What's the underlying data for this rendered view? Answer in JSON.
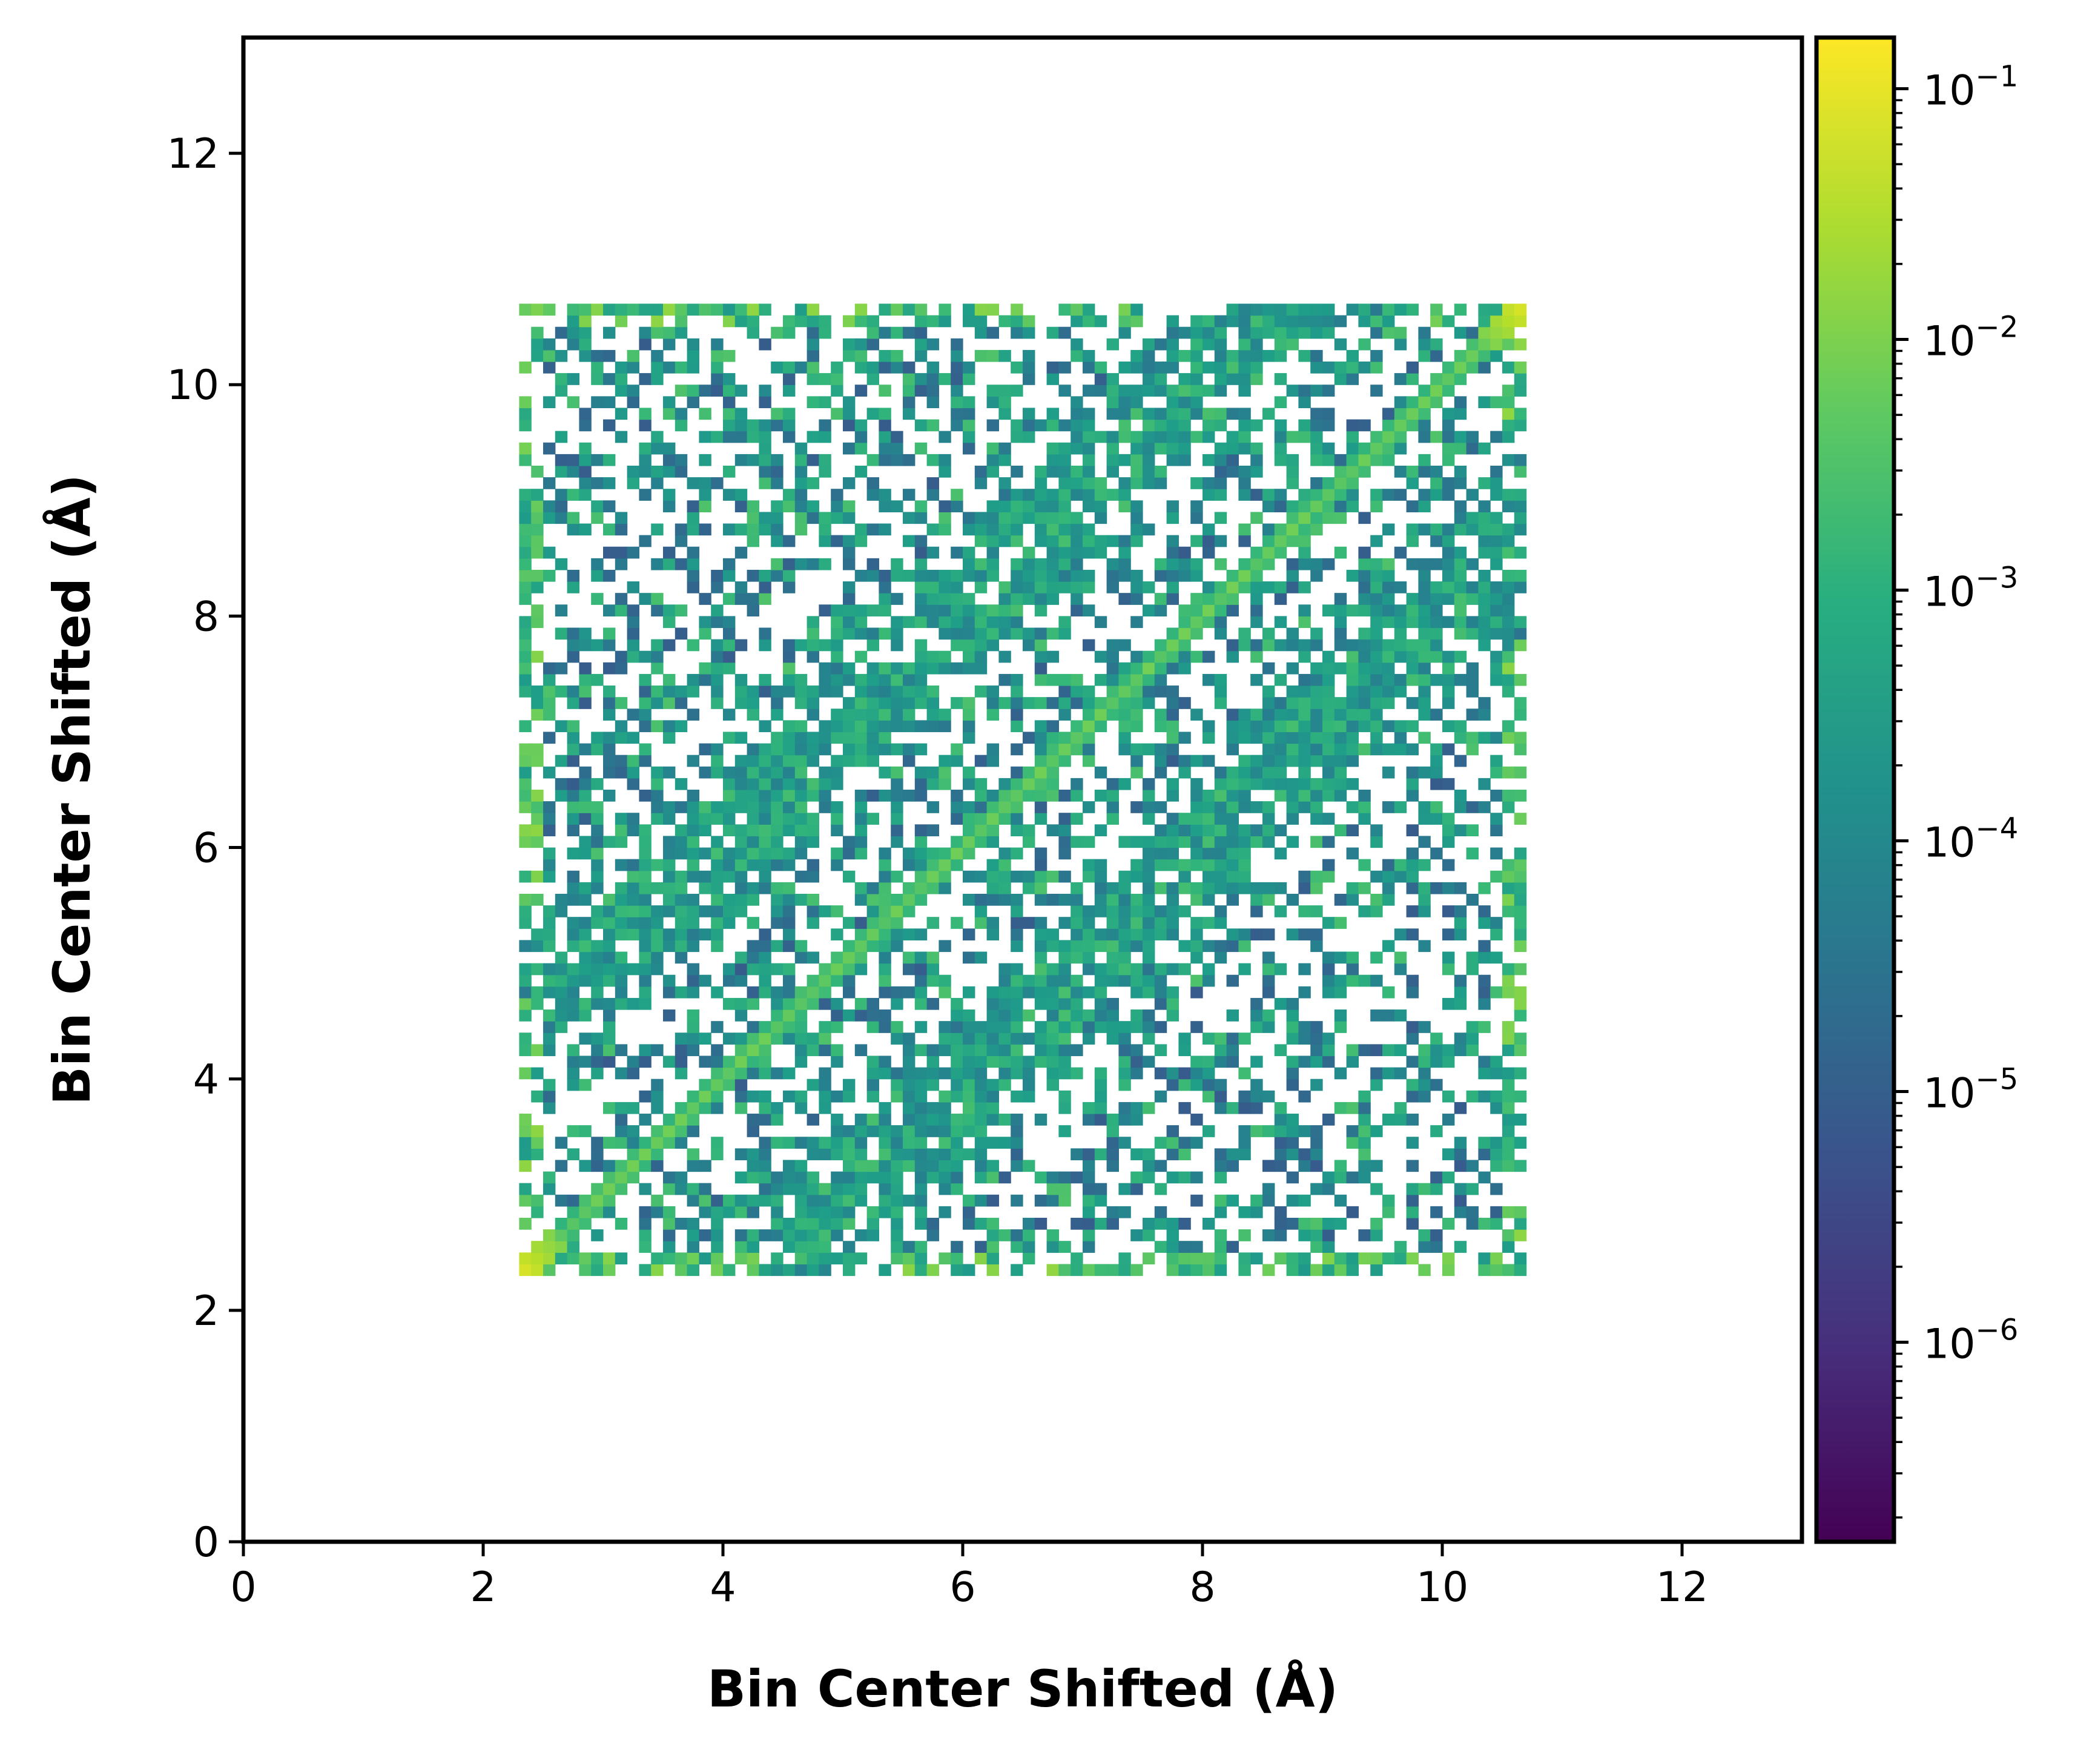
{
  "chart_data": {
    "type": "heatmap",
    "title": "",
    "xlabel": "Bin Center Shifted (Å)",
    "ylabel": "Bin Center Shifted (Å)",
    "xlim": [
      0,
      13
    ],
    "ylim": [
      0,
      13
    ],
    "x_ticks": [
      0,
      2,
      4,
      6,
      8,
      10,
      12
    ],
    "y_ticks": [
      0,
      2,
      4,
      6,
      8,
      10,
      12
    ],
    "x_tick_labels": [
      "0",
      "2",
      "4",
      "6",
      "8",
      "10",
      12
    ],
    "y_tick_labels": [
      "0",
      "2",
      "4",
      "6",
      "8",
      "10",
      "12"
    ],
    "grid": false,
    "data_extent": {
      "x": [
        2.3,
        10.7
      ],
      "y": [
        2.3,
        10.7
      ]
    },
    "bins_per_axis": 84,
    "bin_width": 0.1,
    "colorbar": {
      "colormap": "viridis",
      "scale": "log",
      "vmin": 1.6e-07,
      "vmax": 0.16,
      "ticks": [
        1e-06,
        1e-05,
        0.0001,
        0.001,
        0.01,
        0.1
      ],
      "tick_labels": [
        {
          "base": "10",
          "exp": "−6"
        },
        {
          "base": "10",
          "exp": "−5"
        },
        {
          "base": "10",
          "exp": "−4"
        },
        {
          "base": "10",
          "exp": "−3"
        },
        {
          "base": "10",
          "exp": "−2"
        },
        {
          "base": "10",
          "exp": "−1"
        }
      ]
    },
    "features": [
      {
        "kind": "diagonal",
        "from": [
          2.3,
          2.3
        ],
        "to": [
          10.7,
          10.7
        ],
        "level": 0.004,
        "peak_corners": 0.1
      },
      {
        "kind": "band",
        "from": [
          2.7,
          4.8
        ],
        "to": [
          9.0,
          11.0
        ],
        "level": 0.0003
      },
      {
        "kind": "band",
        "from": [
          4.8,
          2.7
        ],
        "to": [
          11.0,
          9.0
        ],
        "level": 0.0003
      },
      {
        "kind": "edge-rows",
        "level": 0.002
      },
      {
        "kind": "background",
        "level": 5e-05,
        "fill_fraction": 0.45
      }
    ]
  }
}
